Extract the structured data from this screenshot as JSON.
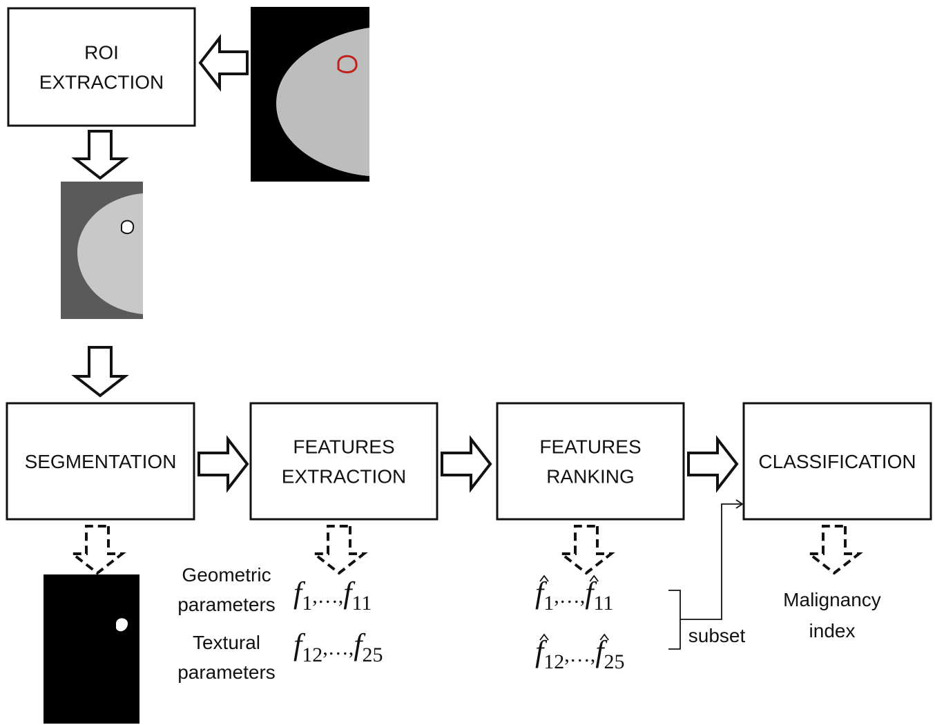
{
  "boxes": [
    {
      "lines": [
        "ROI",
        "EXTRACTION"
      ]
    },
    {
      "lines": [
        "SEGMENTATION"
      ]
    },
    {
      "lines": [
        "FEATURES",
        "EXTRACTION"
      ]
    },
    {
      "lines": [
        "FEATURES",
        "RANKING"
      ]
    },
    {
      "lines": [
        "CLASSIFICATION"
      ]
    }
  ],
  "feature_groups": [
    {
      "label": [
        "Geometric",
        "parameters"
      ]
    },
    {
      "label": [
        "Textural",
        "parameters"
      ]
    }
  ],
  "features": {
    "symbol": "f",
    "separator": ",…,",
    "sets": [
      [
        "1",
        "11"
      ],
      [
        "12",
        "25"
      ]
    ],
    "hat": false
  },
  "ranked_features": {
    "symbol": "f",
    "separator": ",…,",
    "sets": [
      [
        "1",
        "11"
      ],
      [
        "12",
        "25"
      ]
    ],
    "hat": true
  },
  "subset_label": "subset",
  "output": [
    "Malignancy",
    "index"
  ]
}
